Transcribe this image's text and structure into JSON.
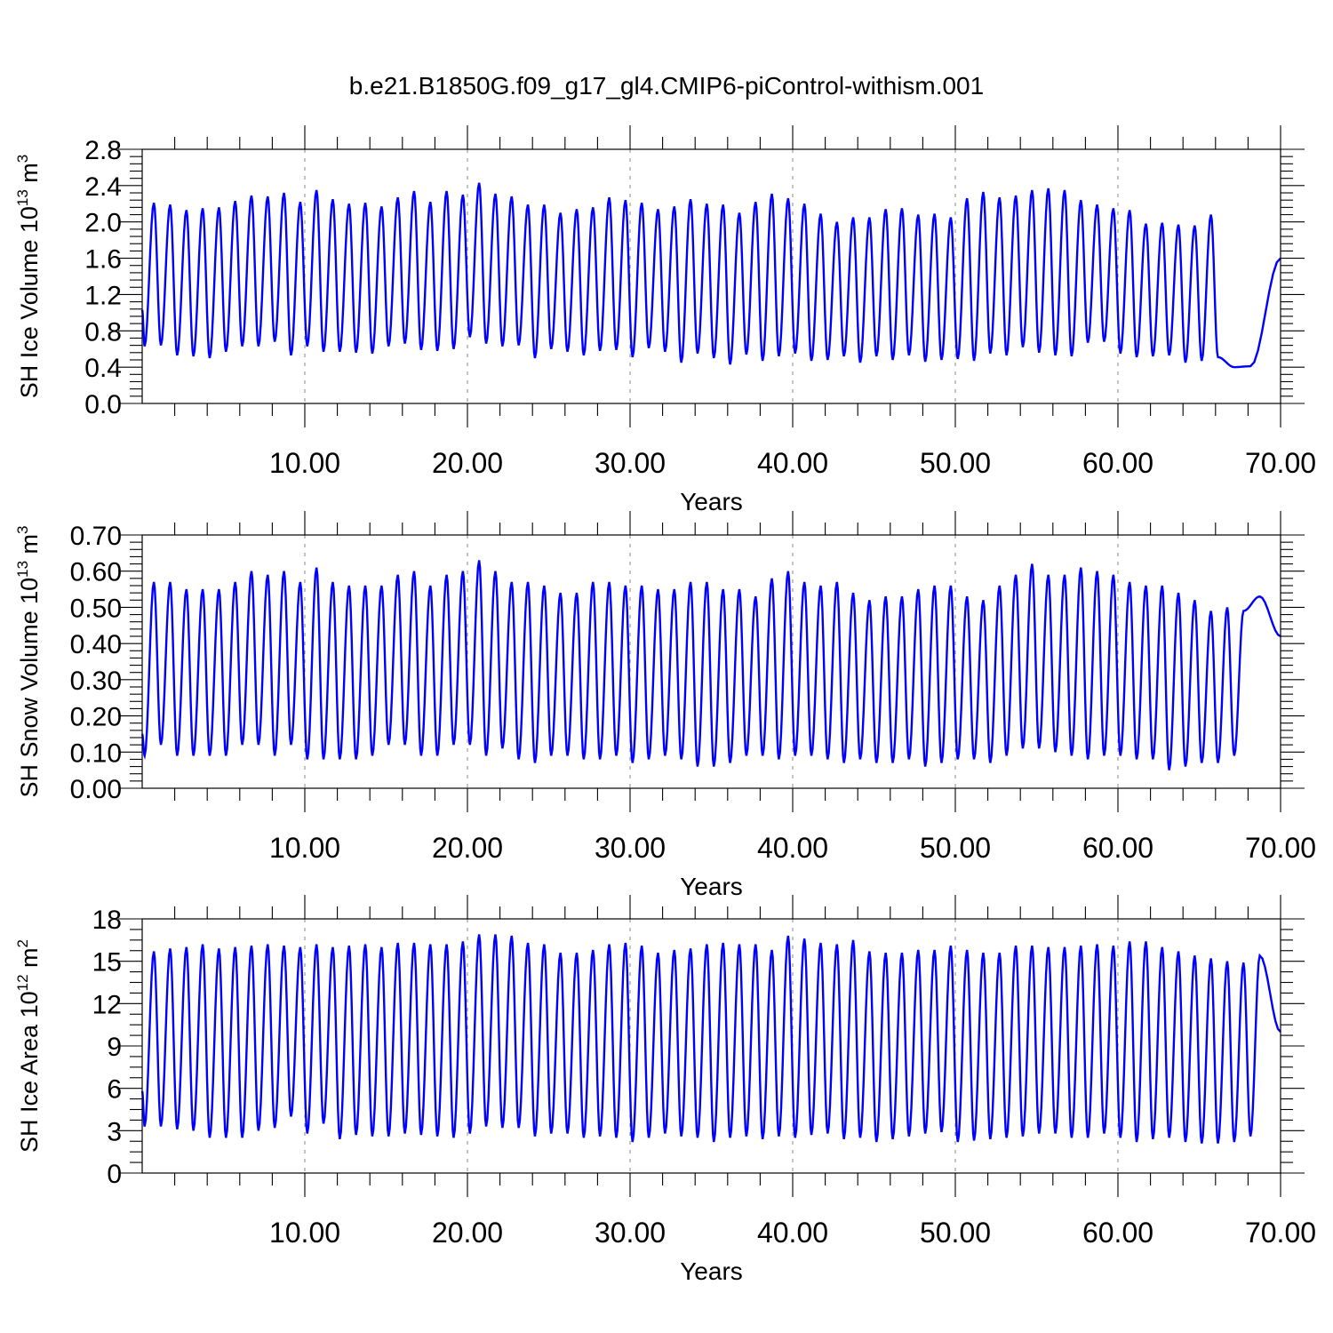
{
  "figure_title": "b.e21.B1850G.f09_g17_gl4.CMIP6-piControl-withism.001",
  "line_color": "#0000ff",
  "panels": [
    {
      "ylabel_main": "SH Ice Volume 10",
      "ylabel_exp": "13",
      "ylabel_unit": " m",
      "ylabel_unit_exp": "3",
      "xlabel": "Years"
    },
    {
      "ylabel_main": "SH Snow Volume 10",
      "ylabel_exp": "13",
      "ylabel_unit": " m",
      "ylabel_unit_exp": "3",
      "xlabel": "Years"
    },
    {
      "ylabel_main": "SH Ice Area 10",
      "ylabel_exp": "12",
      "ylabel_unit": " m",
      "ylabel_unit_exp": "2",
      "xlabel": "Years"
    }
  ],
  "chart_data": [
    {
      "type": "line",
      "title": "b.e21.B1850G.f09_g17_gl4.CMIP6-piControl-withism.001",
      "xlabel": "Years",
      "ylabel": "SH Ice Volume 10^13 m^3",
      "xlim": [
        0,
        70
      ],
      "ylim": [
        0,
        2.8
      ],
      "x_ticks": [
        "10.00",
        "20.00",
        "30.00",
        "40.00",
        "50.00",
        "60.00",
        "70.00"
      ],
      "y_ticks": [
        "0.0",
        "0.4",
        "0.8",
        "1.2",
        "1.6",
        "2.0",
        "2.4",
        "2.8"
      ],
      "grid": "dashed vertical at x ticks",
      "series": [
        {
          "color": "#0000ff",
          "cycle_years": 1,
          "start_value": 1.03,
          "end_value": 1.6,
          "annual_max": [
            2.21,
            2.19,
            2.13,
            2.15,
            2.16,
            2.23,
            2.29,
            2.28,
            2.32,
            2.22,
            2.35,
            2.25,
            2.2,
            2.21,
            2.17,
            2.27,
            2.34,
            2.22,
            2.34,
            2.3,
            2.43,
            2.31,
            2.28,
            2.19,
            2.19,
            2.1,
            2.14,
            2.16,
            2.27,
            2.24,
            2.21,
            2.14,
            2.17,
            2.25,
            2.2,
            2.19,
            2.1,
            2.22,
            2.31,
            2.26,
            2.2,
            2.09,
            2.0,
            2.05,
            2.05,
            2.14,
            2.15,
            2.08,
            2.09,
            2.05,
            2.26,
            2.33,
            2.27,
            2.29,
            2.35,
            2.37,
            2.35,
            2.24,
            2.19,
            2.15,
            2.13,
            1.98,
            1.99,
            1.97,
            1.96,
            2.08
          ],
          "annual_min": [
            0.63,
            0.64,
            0.53,
            0.52,
            0.5,
            0.57,
            0.63,
            0.63,
            0.68,
            0.53,
            0.63,
            0.57,
            0.57,
            0.56,
            0.55,
            0.63,
            0.66,
            0.59,
            0.58,
            0.6,
            0.73,
            0.66,
            0.63,
            0.64,
            0.5,
            0.6,
            0.57,
            0.53,
            0.58,
            0.59,
            0.51,
            0.61,
            0.57,
            0.45,
            0.55,
            0.5,
            0.43,
            0.54,
            0.47,
            0.52,
            0.55,
            0.47,
            0.48,
            0.52,
            0.45,
            0.52,
            0.48,
            0.53,
            0.46,
            0.48,
            0.49,
            0.47,
            0.55,
            0.53,
            0.62,
            0.56,
            0.53,
            0.52,
            0.67,
            0.68,
            0.55,
            0.51,
            0.52,
            0.53,
            0.45,
            0.47,
            0.51,
            0.4,
            0.41
          ]
        }
      ]
    },
    {
      "type": "line",
      "xlabel": "Years",
      "ylabel": "SH Snow Volume 10^13 m^3",
      "xlim": [
        0,
        70
      ],
      "ylim": [
        0,
        0.7
      ],
      "x_ticks": [
        "10.00",
        "20.00",
        "30.00",
        "40.00",
        "50.00",
        "60.00",
        "70.00"
      ],
      "y_ticks": [
        "0.00",
        "0.10",
        "0.20",
        "0.30",
        "0.40",
        "0.50",
        "0.60",
        "0.70"
      ],
      "grid": "dashed vertical at x ticks",
      "series": [
        {
          "color": "#0000ff",
          "cycle_years": 1,
          "start_value": 0.15,
          "end_value": 0.42,
          "annual_max": [
            0.57,
            0.57,
            0.55,
            0.55,
            0.55,
            0.57,
            0.6,
            0.59,
            0.6,
            0.57,
            0.61,
            0.57,
            0.56,
            0.56,
            0.56,
            0.59,
            0.6,
            0.56,
            0.59,
            0.6,
            0.63,
            0.6,
            0.57,
            0.57,
            0.56,
            0.54,
            0.54,
            0.57,
            0.57,
            0.56,
            0.56,
            0.55,
            0.55,
            0.57,
            0.57,
            0.55,
            0.55,
            0.53,
            0.58,
            0.6,
            0.57,
            0.56,
            0.57,
            0.54,
            0.52,
            0.53,
            0.53,
            0.55,
            0.56,
            0.56,
            0.53,
            0.52,
            0.56,
            0.59,
            0.62,
            0.59,
            0.59,
            0.61,
            0.6,
            0.59,
            0.57,
            0.56,
            0.56,
            0.54,
            0.52,
            0.49,
            0.5,
            0.49,
            0.53
          ],
          "annual_min": [
            0.09,
            0.12,
            0.09,
            0.09,
            0.09,
            0.09,
            0.12,
            0.12,
            0.09,
            0.12,
            0.08,
            0.08,
            0.08,
            0.08,
            0.09,
            0.12,
            0.12,
            0.09,
            0.09,
            0.12,
            0.12,
            0.09,
            0.11,
            0.08,
            0.07,
            0.09,
            0.09,
            0.08,
            0.08,
            0.09,
            0.07,
            0.08,
            0.09,
            0.08,
            0.06,
            0.06,
            0.07,
            0.09,
            0.09,
            0.08,
            0.09,
            0.09,
            0.08,
            0.07,
            0.08,
            0.07,
            0.07,
            0.08,
            0.06,
            0.07,
            0.08,
            0.08,
            0.07,
            0.09,
            0.11,
            0.11,
            0.1,
            0.09,
            0.08,
            0.09,
            0.09,
            0.08,
            0.08,
            0.05,
            0.06,
            0.07,
            0.07,
            0.09
          ]
        }
      ]
    },
    {
      "type": "line",
      "xlabel": "Years",
      "ylabel": "SH Ice Area 10^12 m^2",
      "xlim": [
        0,
        70
      ],
      "ylim": [
        0,
        18
      ],
      "x_ticks": [
        "10.00",
        "20.00",
        "30.00",
        "40.00",
        "50.00",
        "60.00",
        "70.00"
      ],
      "y_ticks": [
        "0",
        "3",
        "6",
        "9",
        "12",
        "15",
        "18"
      ],
      "grid": "dashed vertical at x ticks",
      "series": [
        {
          "color": "#0000ff",
          "cycle_years": 1,
          "start_value": 5.8,
          "end_value": 10.0,
          "annual_max": [
            15.7,
            15.9,
            16.0,
            16.2,
            15.9,
            16.0,
            16.1,
            16.2,
            16.1,
            16.0,
            16.2,
            16.0,
            16.1,
            16.2,
            16.0,
            16.3,
            16.3,
            16.2,
            16.2,
            16.4,
            16.9,
            16.9,
            16.8,
            16.3,
            16.2,
            15.6,
            15.6,
            15.8,
            16.2,
            16.3,
            16.1,
            15.6,
            15.8,
            15.9,
            16.2,
            16.3,
            16.2,
            16.2,
            15.8,
            16.8,
            16.6,
            16.3,
            16.2,
            16.5,
            15.7,
            15.6,
            15.6,
            15.8,
            15.8,
            16.1,
            15.8,
            15.6,
            15.6,
            16.1,
            16.1,
            16.0,
            16.0,
            16.1,
            16.2,
            16.1,
            16.4,
            16.4,
            16.0,
            15.7,
            15.4,
            15.2,
            15.0,
            14.9,
            15.4
          ],
          "annual_min": [
            3.3,
            3.3,
            3.1,
            3.0,
            2.5,
            2.5,
            2.5,
            3.0,
            3.2,
            4.0,
            2.8,
            3.5,
            2.4,
            2.7,
            2.6,
            2.6,
            2.8,
            2.7,
            2.6,
            2.5,
            2.8,
            3.3,
            3.2,
            3.2,
            2.6,
            2.8,
            2.8,
            2.5,
            2.6,
            2.5,
            2.2,
            2.5,
            2.8,
            2.6,
            2.5,
            2.2,
            2.5,
            2.6,
            2.4,
            2.6,
            2.5,
            2.7,
            2.8,
            2.4,
            2.5,
            2.2,
            2.4,
            2.6,
            2.8,
            2.9,
            2.2,
            2.3,
            2.4,
            2.5,
            2.6,
            2.8,
            2.8,
            2.5,
            2.5,
            2.8,
            2.5,
            2.2,
            2.4,
            2.5,
            2.2,
            2.1,
            2.1,
            2.2,
            2.6
          ]
        }
      ]
    }
  ]
}
